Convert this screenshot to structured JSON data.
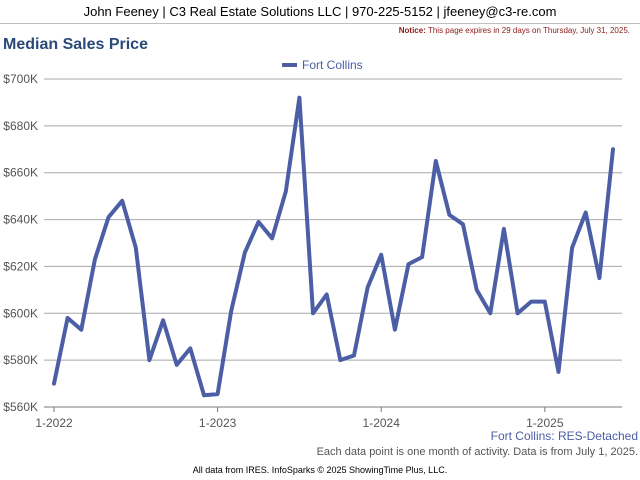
{
  "header": {
    "contact": "John Feeney | C3 Real Estate Solutions LLC | 970-225-5152 | jfeeney@c3-re.com",
    "notice_label": "Notice:",
    "notice_text": "This page expires in 29 days on Thursday, July 31, 2025."
  },
  "footer": {
    "series_label": "Fort Collins: RES-Detached",
    "note": "Each data point is one month of activity. Data is from July 1, 2025.",
    "credit": "All data from IRES. InfoSparks © 2025 ShowingTime Plus, LLC."
  },
  "colors": {
    "series": "#4b5ea6",
    "grid": "#a8a8a8",
    "title": "#2a4a7a"
  },
  "chart_data": {
    "type": "line",
    "title": "Median Sales Price",
    "xlabel": "",
    "ylabel": "",
    "ylim": [
      560000,
      700000
    ],
    "yticks": [
      560000,
      580000,
      600000,
      620000,
      640000,
      660000,
      680000,
      700000
    ],
    "ytick_labels": [
      "$560K",
      "$580K",
      "$600K",
      "$620K",
      "$640K",
      "$660K",
      "$680K",
      "$700K"
    ],
    "xticks": [
      "1-2022",
      "1-2023",
      "1-2024",
      "1-2025"
    ],
    "xtick_index": [
      0,
      12,
      24,
      36
    ],
    "grid": true,
    "legend": "top-center",
    "series": [
      {
        "name": "Fort Collins",
        "color": "#4b5ea6",
        "x": [
          "2022-01",
          "2022-02",
          "2022-03",
          "2022-04",
          "2022-05",
          "2022-06",
          "2022-07",
          "2022-08",
          "2022-09",
          "2022-10",
          "2022-11",
          "2022-12",
          "2023-01",
          "2023-02",
          "2023-03",
          "2023-04",
          "2023-05",
          "2023-06",
          "2023-07",
          "2023-08",
          "2023-09",
          "2023-10",
          "2023-11",
          "2023-12",
          "2024-01",
          "2024-02",
          "2024-03",
          "2024-04",
          "2024-05",
          "2024-06",
          "2024-07",
          "2024-08",
          "2024-09",
          "2024-10",
          "2024-11",
          "2024-12",
          "2025-01",
          "2025-02",
          "2025-03",
          "2025-04",
          "2025-05",
          "2025-06"
        ],
        "values": [
          570000,
          598000,
          593000,
          623000,
          641000,
          648000,
          628000,
          580000,
          597000,
          578000,
          585000,
          565000,
          565500,
          601000,
          626000,
          639000,
          632000,
          652000,
          692000,
          600000,
          608000,
          580000,
          582000,
          611000,
          625000,
          593000,
          621000,
          624000,
          665000,
          642000,
          638000,
          610000,
          600000,
          636000,
          600000,
          605000,
          605000,
          575000,
          628000,
          643000,
          615000,
          670000
        ]
      }
    ]
  }
}
